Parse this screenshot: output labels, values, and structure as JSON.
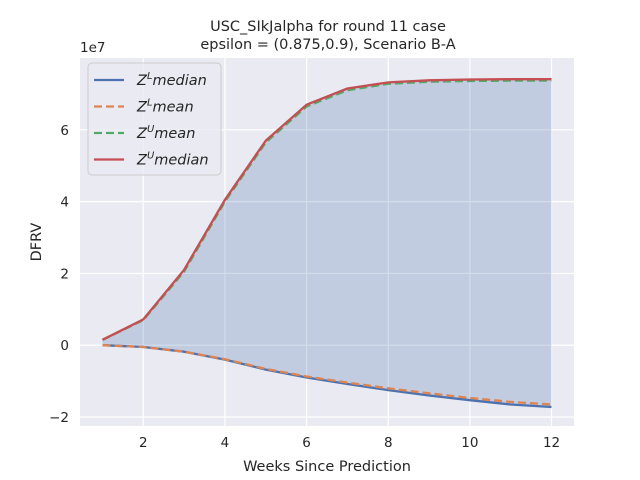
{
  "chart_data": {
    "type": "line",
    "title_line1": "USC_SIkJalpha for round 11 case",
    "title_line2": "epsilon = (0.875,0.9), Scenario B-A",
    "xlabel": "Weeks Since Prediction",
    "ylabel": "DFRV",
    "y_offset_text": "1e7",
    "x": [
      1,
      2,
      3,
      4,
      5,
      6,
      7,
      8,
      9,
      10,
      11,
      12
    ],
    "xlim": [
      0.45,
      12.55
    ],
    "ylim": [
      -22500000,
      80000000
    ],
    "x_ticks": [
      2,
      4,
      6,
      8,
      10,
      12
    ],
    "x_tick_labels": [
      "2",
      "4",
      "6",
      "8",
      "10",
      "12"
    ],
    "y_ticks": [
      -20000000,
      0,
      20000000,
      40000000,
      60000000
    ],
    "y_tick_labels": [
      "−2",
      "0",
      "2",
      "4",
      "6"
    ],
    "grid": true,
    "background": "#eaeaf2",
    "fill_color": "#4c72b0",
    "fill_between": [
      "Z^L median",
      "Z^U median"
    ],
    "legend_position": "upper-left",
    "series": [
      {
        "name": "Z^L median",
        "legend_base": "Z",
        "legend_sup": "L",
        "legend_rest": "median",
        "color": "#4c72b0",
        "style": "solid",
        "values": [
          0,
          -500000,
          -1800000,
          -4000000,
          -6800000,
          -9000000,
          -10800000,
          -12500000,
          -14000000,
          -15300000,
          -16500000,
          -17200000
        ]
      },
      {
        "name": "Z^L mean",
        "legend_base": "Z",
        "legend_sup": "L",
        "legend_rest": "mean",
        "color": "#dd8452",
        "style": "dashed",
        "values": [
          0,
          -500000,
          -1800000,
          -3900000,
          -6600000,
          -8700000,
          -10400000,
          -12000000,
          -13400000,
          -14700000,
          -15800000,
          -16500000
        ]
      },
      {
        "name": "Z^U mean",
        "legend_base": "Z",
        "legend_sup": "U",
        "legend_rest": "mean",
        "color": "#55a868",
        "style": "dashed",
        "values": [
          1500000,
          7000000,
          20500000,
          40000000,
          56500000,
          66500000,
          71000000,
          72800000,
          73400000,
          73600000,
          73700000,
          73700000
        ]
      },
      {
        "name": "Z^U median",
        "legend_base": "Z",
        "legend_sup": "U",
        "legend_rest": "median",
        "color": "#c44e52",
        "style": "solid",
        "values": [
          1500000,
          7200000,
          21000000,
          40500000,
          57000000,
          67000000,
          71500000,
          73200000,
          73800000,
          74000000,
          74100000,
          74100000
        ]
      }
    ]
  }
}
